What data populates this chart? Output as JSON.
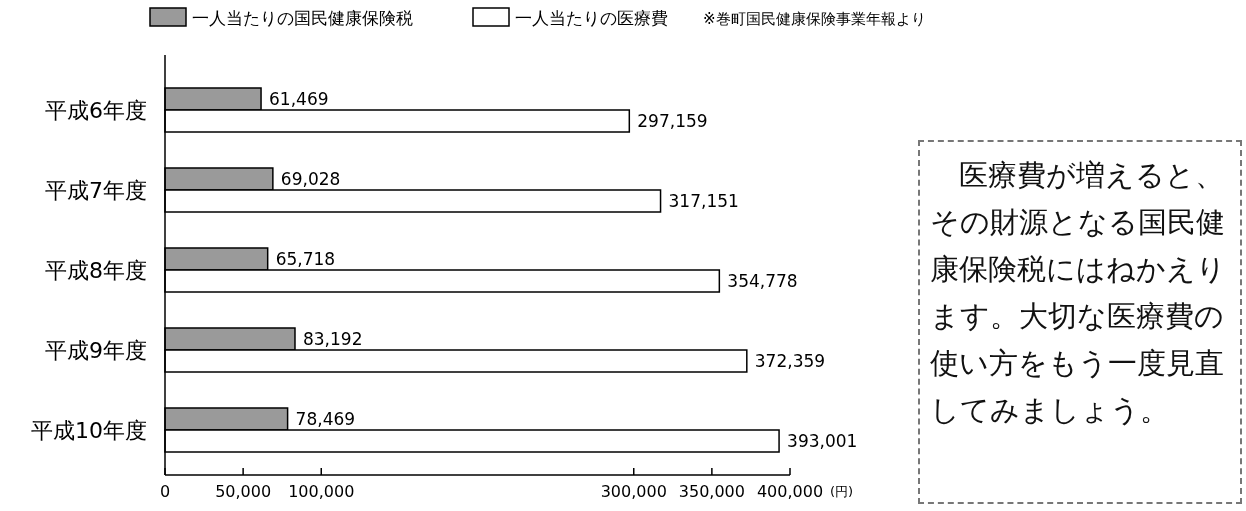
{
  "chart_data": {
    "type": "bar",
    "orientation": "horizontal",
    "categories": [
      "平成6年度",
      "平成7年度",
      "平成8年度",
      "平成9年度",
      "平成10年度"
    ],
    "series": [
      {
        "name": "一人当たりの国民健康保険税",
        "color": "#9a9a9a",
        "values": [
          61469,
          69028,
          65718,
          83192,
          78469
        ],
        "value_labels": [
          "61,469",
          "69,028",
          "65,718",
          "83,192",
          "78,469"
        ]
      },
      {
        "name": "一人当たりの医療費",
        "color": "#ffffff",
        "values": [
          297159,
          317151,
          354778,
          372359,
          393001
        ],
        "value_labels": [
          "297,159",
          "317,151",
          "354,778",
          "372,359",
          "393,001"
        ]
      }
    ],
    "xlim": [
      0,
      400000
    ],
    "xticks": [
      0,
      {
        "value": 50000,
        "label": "50,000"
      },
      {
        "value": 100000,
        "label": "100,000"
      },
      {
        "value": 300000,
        "label": "300,000"
      },
      {
        "value": 350000,
        "label": "350,000"
      },
      {
        "value": 400000,
        "label": "400,000"
      }
    ],
    "xlabel": "(円)",
    "legend": "top",
    "annotations": [
      "※巻町国民健康保険事業年報より",
      "医療費が増えると、その財源となる国民健康保険税にはねかえります。大切な医療費の使い方をもう一度見直してみましょう。"
    ]
  }
}
